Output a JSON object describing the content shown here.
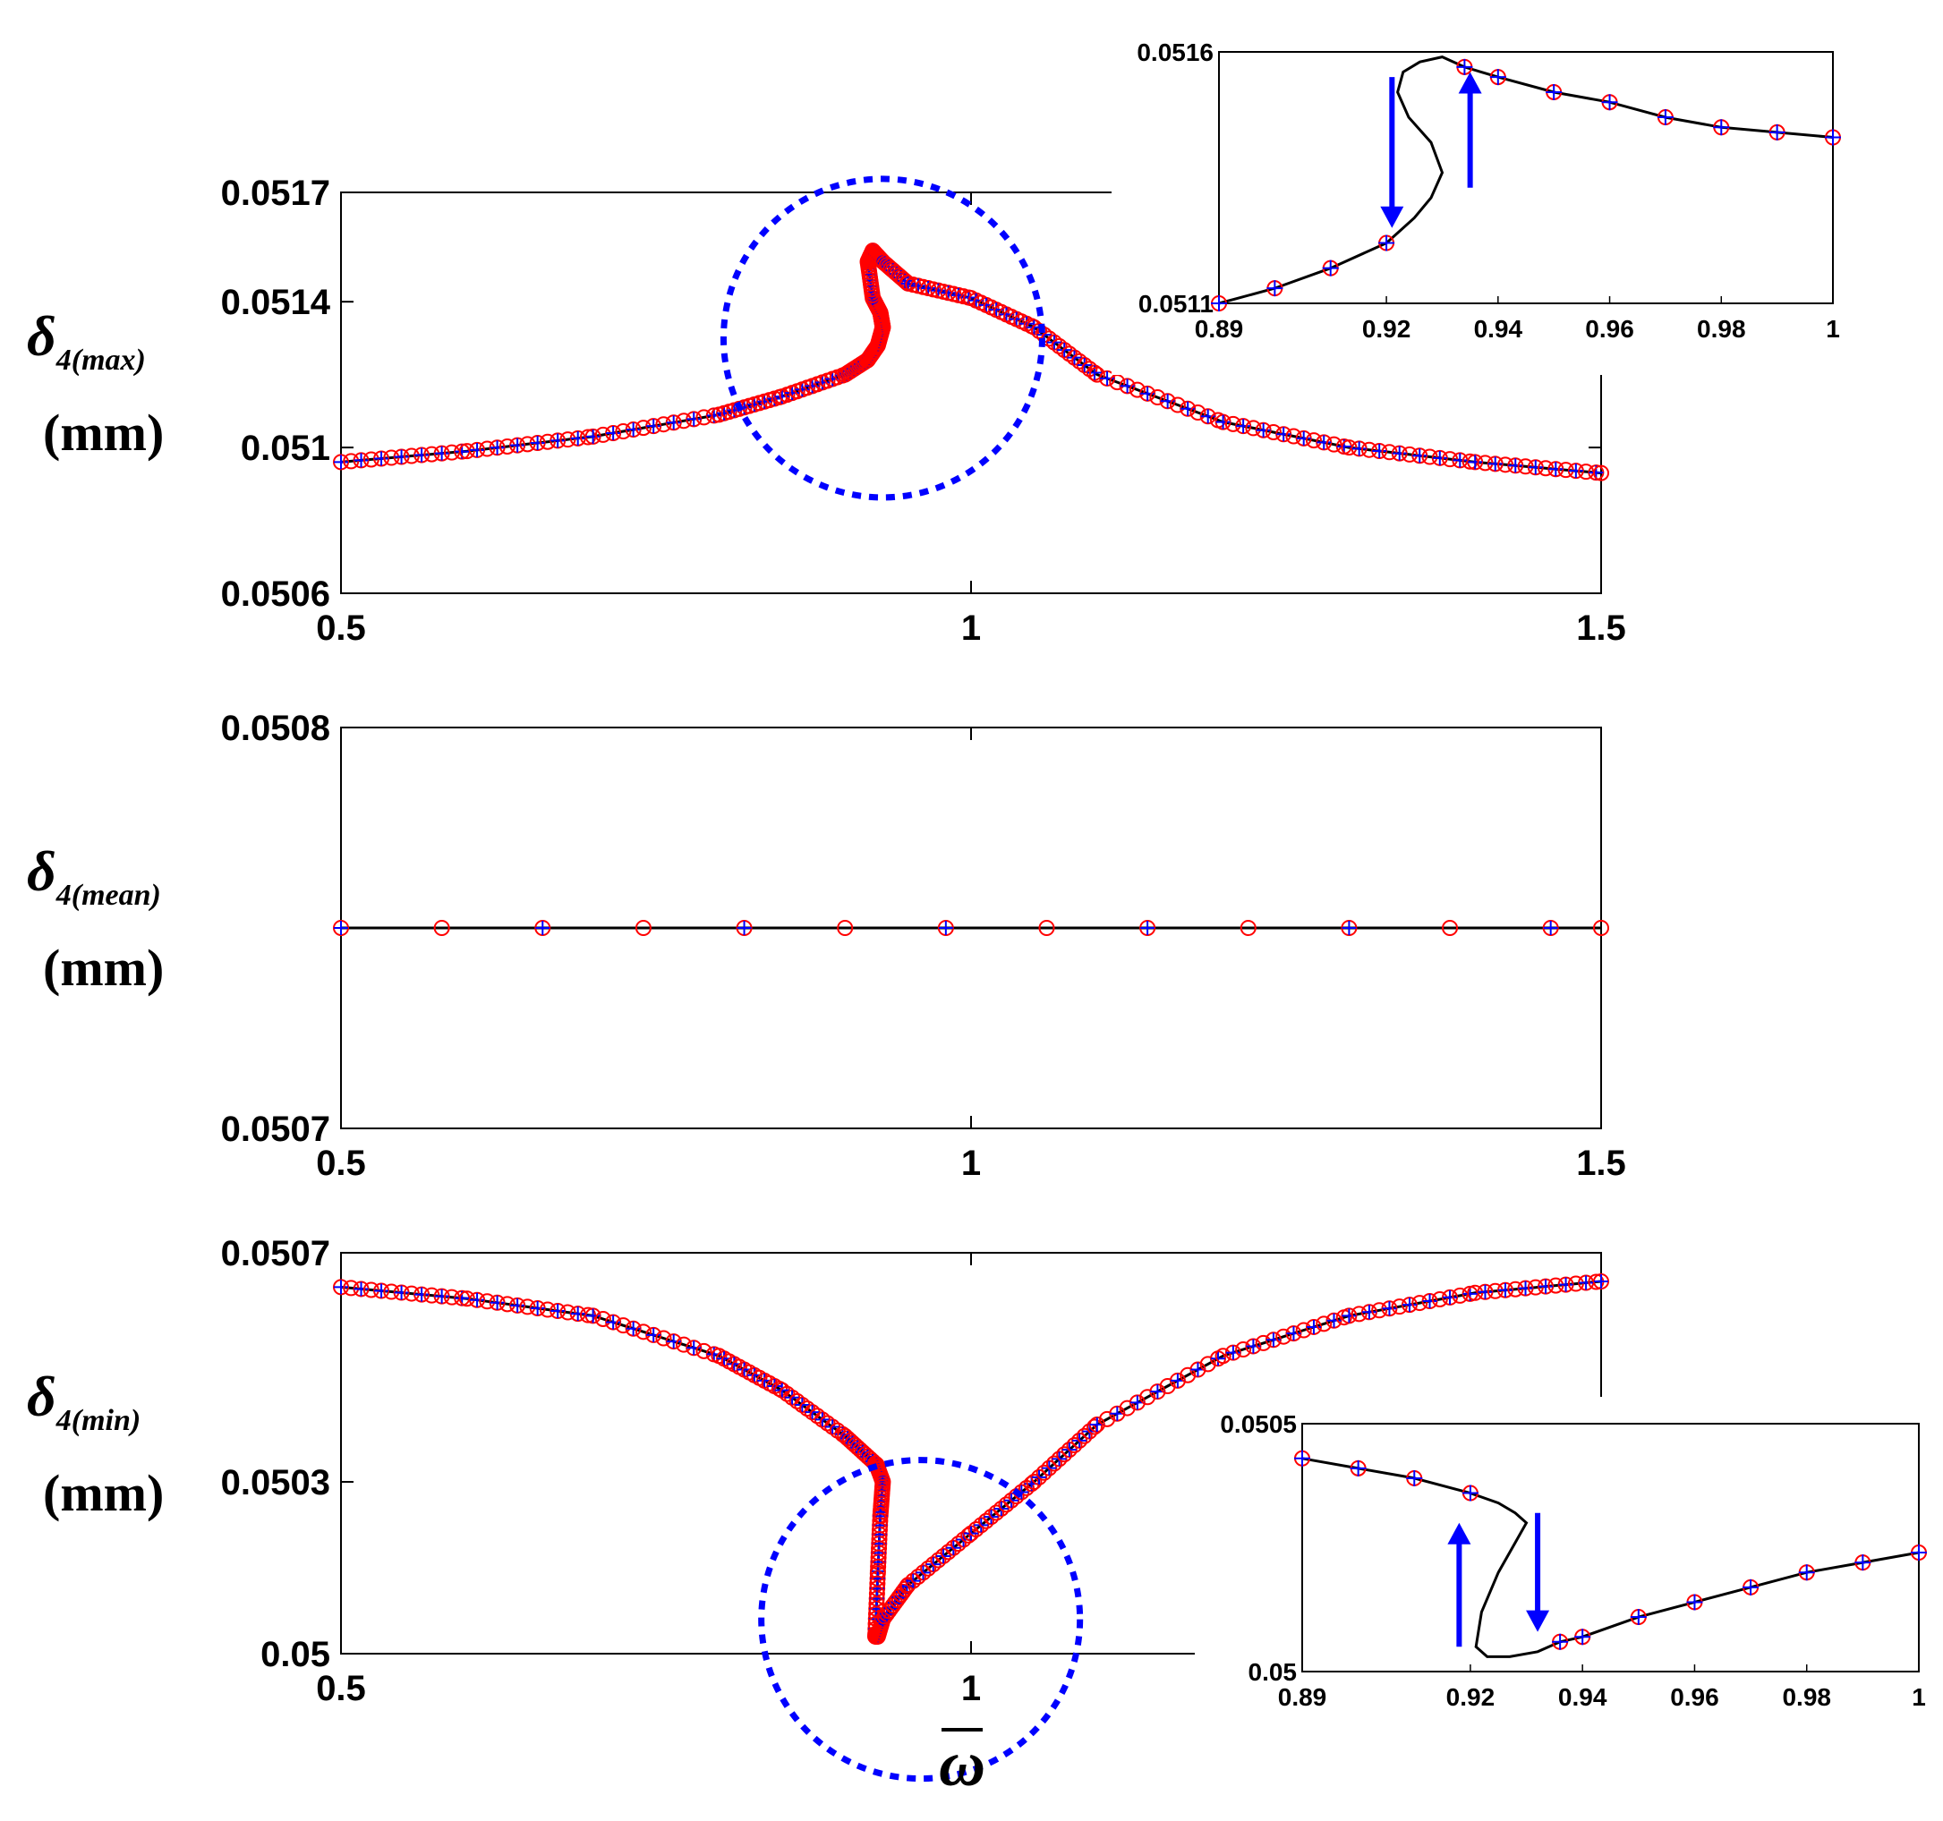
{
  "colors": {
    "marker_circle": "#ff0000",
    "marker_plus": "#0000ff",
    "line": "#000000",
    "highlight": "#0000ff",
    "arrow": "#0000ff"
  },
  "xlabel": "ω",
  "chart_data": [
    {
      "id": "max",
      "type": "line",
      "ylabel_symbol": "δ",
      "ylabel_sub": "4(max)",
      "ylabel_unit": "(mm)",
      "xlim": [
        0.5,
        1.5
      ],
      "ylim": [
        0.0506,
        0.0517
      ],
      "xticks": [
        "0.5",
        "1",
        "1.5"
      ],
      "yticks": [
        "0.0506",
        "0.051",
        "0.0514",
        "0.0517"
      ],
      "grid": false,
      "markers": [
        "circle",
        "plus"
      ],
      "x": [
        0.5,
        0.6,
        0.7,
        0.8,
        0.85,
        0.9,
        0.918,
        0.926,
        0.93,
        0.928,
        0.922,
        0.918,
        0.922,
        0.93,
        0.95,
        1.0,
        1.05,
        1.1,
        1.2,
        1.3,
        1.4,
        1.5
      ],
      "y": [
        0.05096,
        0.05099,
        0.05103,
        0.05109,
        0.05114,
        0.0512,
        0.05124,
        0.05128,
        0.05133,
        0.05137,
        0.05141,
        0.05151,
        0.05154,
        0.05151,
        0.05145,
        0.05141,
        0.05133,
        0.0512,
        0.05107,
        0.051,
        0.05096,
        0.05093
      ],
      "highlight_circle": {
        "x": 0.93,
        "y": 0.0513
      },
      "inset": {
        "xlim": [
          0.89,
          1.0
        ],
        "ylim": [
          0.0511,
          0.0516
        ],
        "xticks": [
          "0.89",
          "0.92",
          "0.94",
          "0.96",
          "0.98",
          "1"
        ],
        "yticks": [
          "0.0511",
          "0.0516"
        ],
        "x": [
          0.89,
          0.9,
          0.91,
          0.92,
          0.925,
          0.928,
          0.93,
          0.928,
          0.924,
          0.922,
          0.923,
          0.926,
          0.93,
          0.934,
          0.94,
          0.95,
          0.96,
          0.97,
          0.98,
          0.99,
          1.0
        ],
        "y": [
          0.0511,
          0.05113,
          0.05117,
          0.05122,
          0.05127,
          0.05131,
          0.05136,
          0.05142,
          0.05147,
          0.05152,
          0.05156,
          0.05158,
          0.05159,
          0.05157,
          0.05155,
          0.05152,
          0.0515,
          0.05147,
          0.05145,
          0.05144,
          0.05143
        ],
        "arrows": [
          {
            "x": 0.921,
            "from": 0.05155,
            "to": 0.05125,
            "dir": "down"
          },
          {
            "x": 0.935,
            "from": 0.05133,
            "to": 0.05156,
            "dir": "up"
          }
        ]
      }
    },
    {
      "id": "mean",
      "type": "line",
      "ylabel_symbol": "δ",
      "ylabel_sub": "4(mean)",
      "ylabel_unit": "(mm)",
      "xlim": [
        0.5,
        1.5
      ],
      "ylim": [
        0.0507,
        0.0508
      ],
      "xticks": [
        "0.5",
        "1",
        "1.5"
      ],
      "yticks": [
        "0.0507",
        "0.0508"
      ],
      "grid": false,
      "markers": [
        "circle",
        "plus"
      ],
      "x": [
        0.5,
        1.5
      ],
      "y": [
        0.05075,
        0.05075
      ]
    },
    {
      "id": "min",
      "type": "line",
      "ylabel_symbol": "δ",
      "ylabel_sub": "4(min)",
      "ylabel_unit": "(mm)",
      "xlim": [
        0.5,
        1.5
      ],
      "ylim": [
        0.05,
        0.0507
      ],
      "xticks": [
        "0.5",
        "1"
      ],
      "yticks": [
        "0.05",
        "0.0503",
        "0.0507"
      ],
      "grid": false,
      "markers": [
        "circle",
        "plus"
      ],
      "x": [
        0.5,
        0.6,
        0.7,
        0.8,
        0.85,
        0.9,
        0.925,
        0.93,
        0.928,
        0.926,
        0.924,
        0.926,
        0.93,
        0.95,
        1.0,
        1.05,
        1.1,
        1.2,
        1.3,
        1.4,
        1.5
      ],
      "y": [
        0.05064,
        0.05062,
        0.05059,
        0.05052,
        0.05046,
        0.05038,
        0.05033,
        0.0503,
        0.05024,
        0.05014,
        0.05003,
        0.05003,
        0.05006,
        0.05012,
        0.05021,
        0.0503,
        0.0504,
        0.05052,
        0.05059,
        0.05063,
        0.05065
      ],
      "highlight_circle": {
        "x": 0.96,
        "y": 0.05006
      },
      "inset": {
        "xlim": [
          0.89,
          1.0
        ],
        "ylim": [
          0.05,
          0.0505
        ],
        "xticks": [
          "0.89",
          "0.92",
          "0.94",
          "0.96",
          "0.98",
          "1"
        ],
        "yticks": [
          "0.05",
          "0.0505"
        ],
        "x": [
          0.89,
          0.9,
          0.91,
          0.92,
          0.925,
          0.928,
          0.93,
          0.928,
          0.925,
          0.922,
          0.921,
          0.923,
          0.927,
          0.932,
          0.936,
          0.94,
          0.95,
          0.96,
          0.97,
          0.98,
          0.99,
          1.0
        ],
        "y": [
          0.05043,
          0.05041,
          0.05039,
          0.05036,
          0.05034,
          0.05032,
          0.0503,
          0.05026,
          0.0502,
          0.05012,
          0.05005,
          0.05003,
          0.05003,
          0.05004,
          0.05006,
          0.05007,
          0.05011,
          0.05014,
          0.05017,
          0.0502,
          0.05022,
          0.05024
        ],
        "arrows": [
          {
            "x": 0.918,
            "from": 0.05005,
            "to": 0.0503,
            "dir": "up"
          },
          {
            "x": 0.932,
            "from": 0.05032,
            "to": 0.05008,
            "dir": "down"
          }
        ]
      }
    }
  ]
}
